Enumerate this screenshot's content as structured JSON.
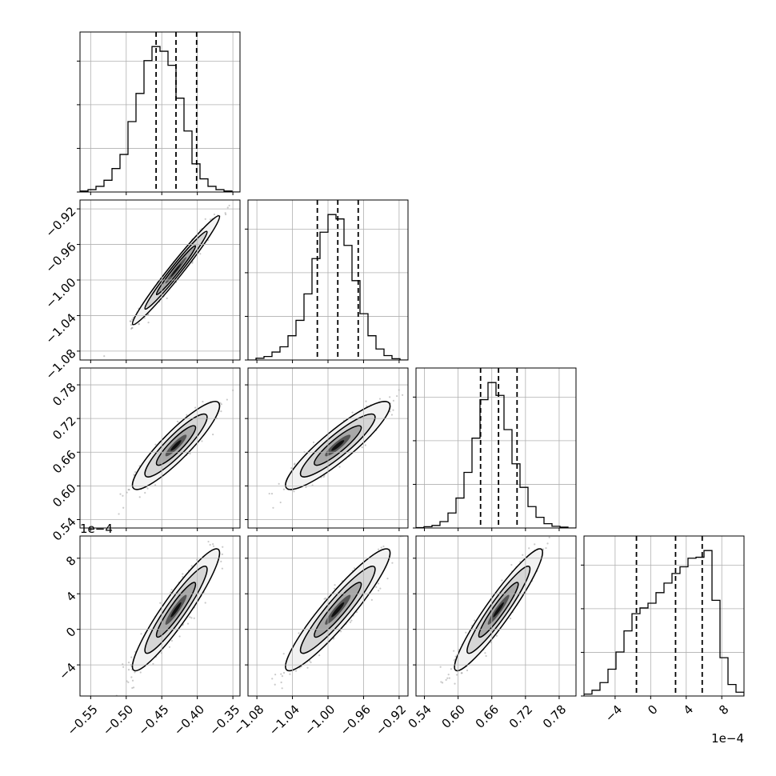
{
  "chart_data": {
    "type": "corner",
    "parameters": 4,
    "grid": true,
    "colors": {
      "line": "#000000",
      "grid": "#b0b0b0",
      "scatter": "#888888",
      "fill_dark": "#000000",
      "fill_light": "#f0f0f0"
    },
    "axes": [
      {
        "range": [
          -0.565,
          -0.34
        ],
        "ticks": [
          -0.55,
          -0.5,
          -0.45,
          -0.4,
          -0.35
        ],
        "tick_labels": [
          "−0.55",
          "−0.50",
          "−0.45",
          "−0.40",
          "−0.35"
        ],
        "offset_label": ""
      },
      {
        "range": [
          -1.09,
          -0.91
        ],
        "ticks": [
          -1.08,
          -1.04,
          -1.0,
          -0.96,
          -0.92
        ],
        "tick_labels": [
          "−1.08",
          "−1.04",
          "−1.00",
          "−0.96",
          "−0.92"
        ],
        "offset_label": ""
      },
      {
        "range": [
          0.525,
          0.81
        ],
        "ticks": [
          0.54,
          0.6,
          0.66,
          0.72,
          0.78
        ],
        "tick_labels": [
          "0.54",
          "0.60",
          "0.66",
          "0.72",
          "0.78"
        ],
        "offset_label": ""
      },
      {
        "range": [
          -0.00075,
          0.00105
        ],
        "ticks": [
          -0.0004,
          0.0,
          0.0004,
          0.0008
        ],
        "tick_labels": [
          "−4",
          "0",
          "4",
          "8"
        ],
        "offset_label": "1e−4"
      }
    ],
    "histograms": [
      {
        "param": 0,
        "bin_edges_range": [
          -0.565,
          -0.34
        ],
        "bins": 20,
        "counts": [
          2,
          5,
          12,
          25,
          50,
          80,
          150,
          210,
          280,
          310,
          300,
          270,
          200,
          130,
          60,
          28,
          12,
          5,
          2,
          0
        ],
        "quantiles": [
          -0.458,
          -0.43,
          -0.401
        ]
      },
      {
        "param": 1,
        "bin_edges_range": [
          -1.09,
          -0.91
        ],
        "bins": 20,
        "counts": [
          0,
          4,
          8,
          18,
          30,
          55,
          90,
          150,
          230,
          290,
          330,
          320,
          260,
          180,
          105,
          55,
          25,
          10,
          3,
          0
        ],
        "quantiles": [
          -1.012,
          -0.989,
          -0.966
        ]
      },
      {
        "param": 2,
        "bin_edges_range": [
          0.525,
          0.81
        ],
        "bins": 20,
        "counts": [
          1,
          3,
          6,
          15,
          35,
          70,
          130,
          210,
          300,
          340,
          310,
          230,
          150,
          95,
          50,
          25,
          10,
          4,
          2,
          0
        ],
        "quantiles": [
          0.64,
          0.672,
          0.705
        ]
      },
      {
        "param": 3,
        "bin_edges_range": [
          -0.00075,
          0.00105
        ],
        "bins": 20,
        "counts": [
          2,
          6,
          14,
          28,
          46,
          68,
          86,
          92,
          97,
          108,
          118,
          128,
          135,
          144,
          145,
          152,
          100,
          40,
          12,
          4
        ],
        "quantiles": [
          -0.00016,
          0.00028,
          0.00058
        ]
      }
    ],
    "pairs": [
      {
        "x": 0,
        "y": 1,
        "mean": [
          -0.43,
          -0.989
        ],
        "sigma": [
          0.025,
          0.025
        ],
        "rho": 0.98
      },
      {
        "x": 0,
        "y": 2,
        "mean": [
          -0.43,
          0.672
        ],
        "sigma": [
          0.025,
          0.032
        ],
        "rho": 0.9
      },
      {
        "x": 1,
        "y": 2,
        "mean": [
          -0.989,
          0.672
        ],
        "sigma": [
          0.024,
          0.032
        ],
        "rho": 0.9
      },
      {
        "x": 0,
        "y": 3,
        "mean": [
          -0.43,
          0.00022
        ],
        "sigma": [
          0.025,
          0.00028
        ],
        "rho": 0.93
      },
      {
        "x": 1,
        "y": 3,
        "mean": [
          -0.989,
          0.00022
        ],
        "sigma": [
          0.024,
          0.00028
        ],
        "rho": 0.93
      },
      {
        "x": 2,
        "y": 3,
        "mean": [
          0.672,
          0.00022
        ],
        "sigma": [
          0.032,
          0.00028
        ],
        "rho": 0.94
      }
    ]
  }
}
